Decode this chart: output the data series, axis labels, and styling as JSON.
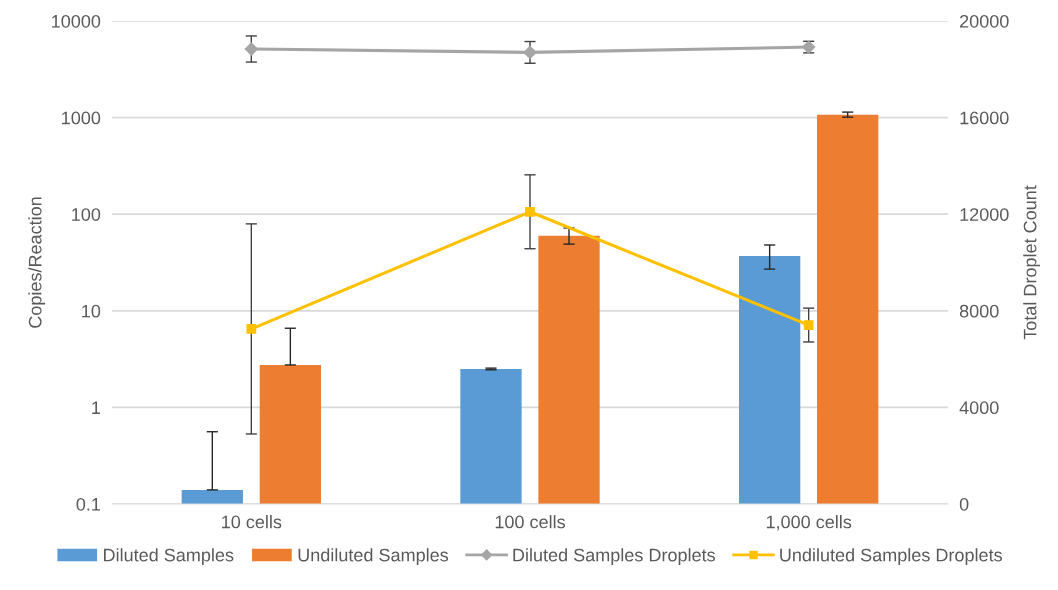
{
  "chart_data": {
    "type": "bar",
    "ylabel": "Copies/Reaction",
    "y2label": "Total Droplet Count",
    "categories": [
      "10 cells",
      "100 cells",
      "1,000 cells"
    ],
    "log": true,
    "ylim": [
      0.1,
      10000
    ],
    "yticks": [
      0.1,
      1,
      10,
      100,
      1000,
      10000
    ],
    "y2lim": [
      0,
      20000
    ],
    "y2ticks": [
      0,
      4000,
      8000,
      12000,
      16000,
      20000
    ],
    "grid": "y",
    "legend": "bottom",
    "series": [
      {
        "name": "Diluted Samples",
        "color": "#5b9bd5",
        "values": [
          0.14,
          2.5,
          37
        ],
        "errors": [
          [
            0.14,
            0.56
          ],
          0.05,
          [
            27,
            48
          ]
        ]
      },
      {
        "name": "Undiluted Samples",
        "color": "#ed7d31",
        "values": [
          2.75,
          60,
          1070
        ],
        "errors": [
          [
            2.75,
            6.6
          ],
          [
            49,
            72
          ],
          [
            1010,
            1140
          ]
        ]
      },
      {
        "name": "Diluted Samples Droplets",
        "type": "line",
        "axis": "y2",
        "marker": "diamond",
        "color": "#a5a5a5",
        "values": [
          18840,
          18700,
          18920
        ],
        "errors": [
          540,
          450,
          240
        ]
      },
      {
        "name": "Undiluted Samples Droplets",
        "type": "line",
        "axis": "y2",
        "marker": "square",
        "color": "#ffc000",
        "values": [
          7250,
          12100,
          7410
        ],
        "errors": [
          4350,
          1530,
          700
        ]
      }
    ]
  }
}
